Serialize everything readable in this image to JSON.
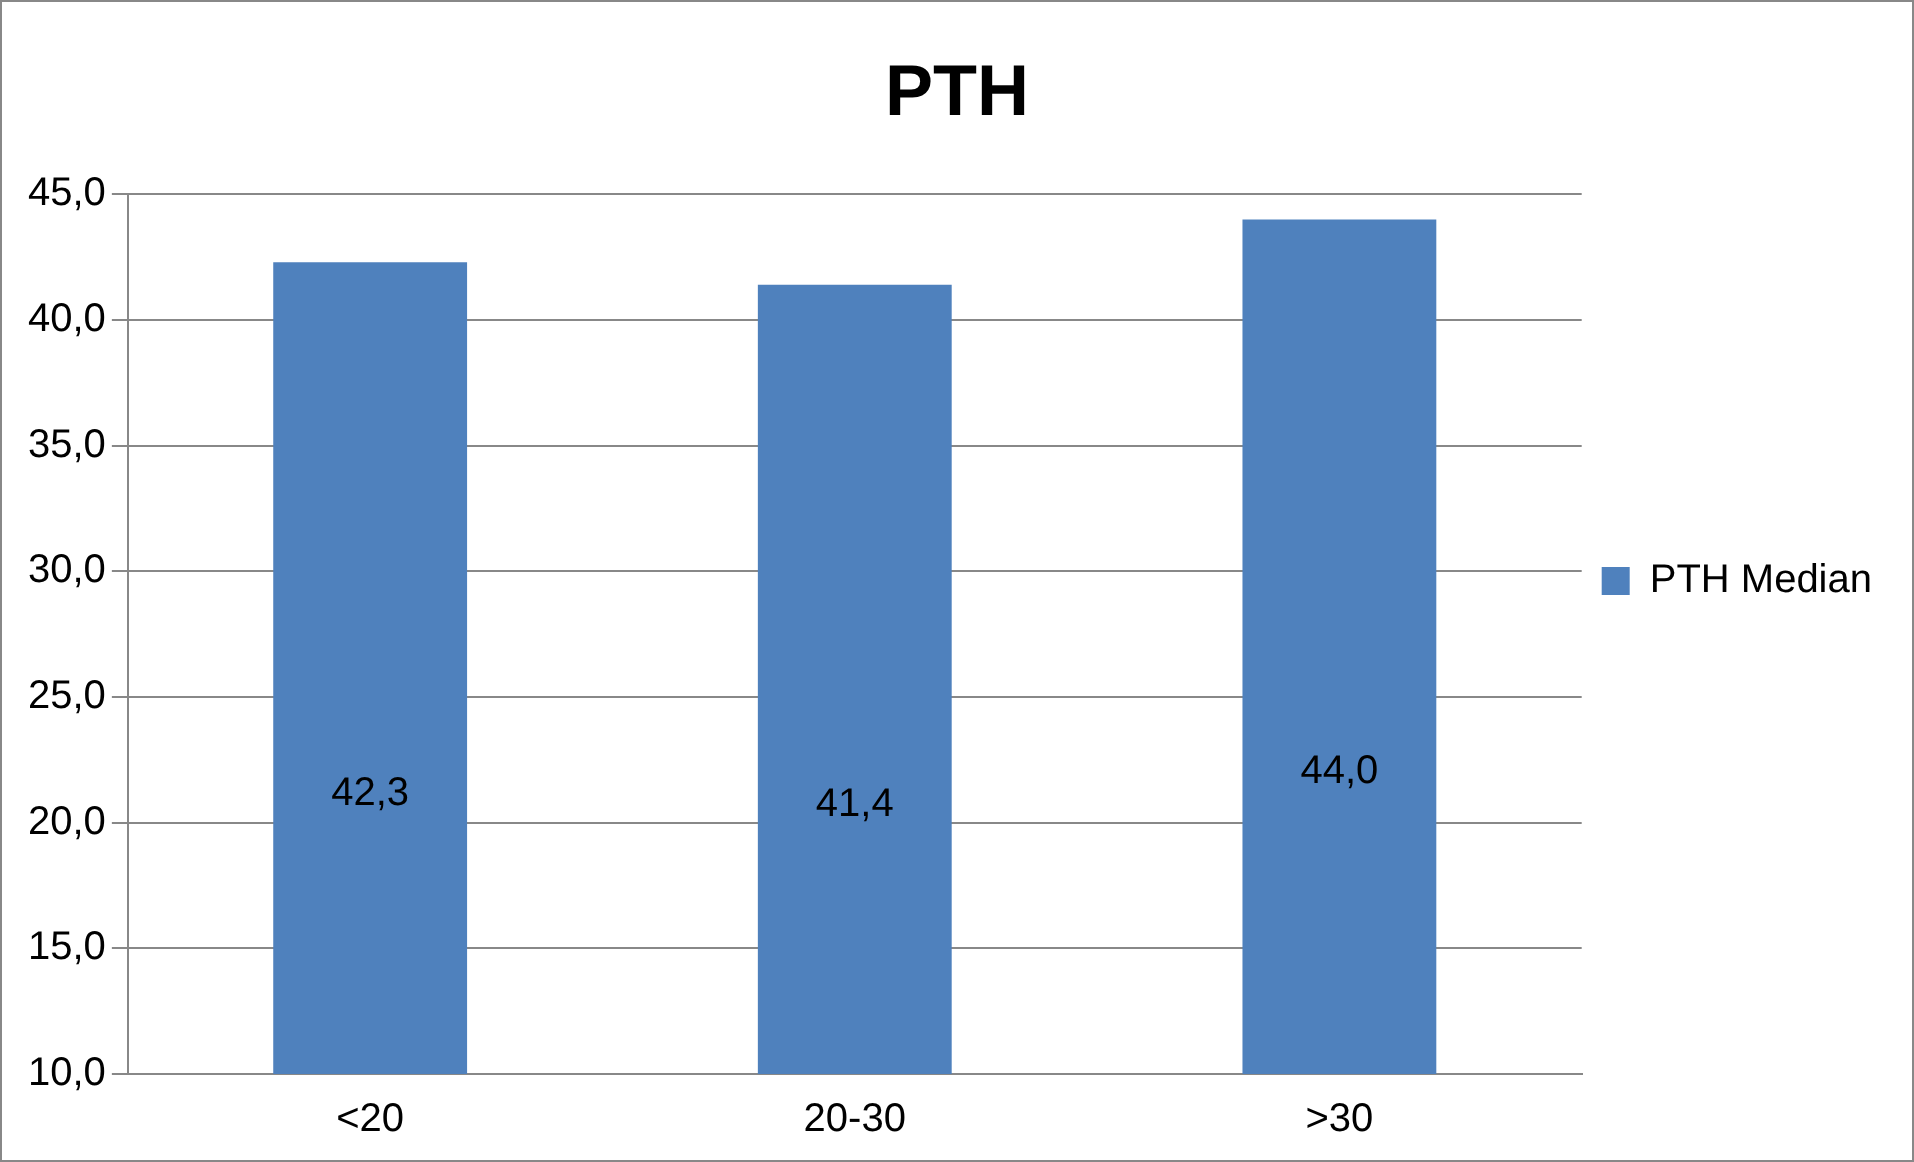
{
  "chart_data": {
    "type": "bar",
    "title": "PTH",
    "categories": [
      "<20",
      "20-30",
      ">30"
    ],
    "series": [
      {
        "name": "PTH Median",
        "color": "#4f81bd",
        "values": [
          42.3,
          41.4,
          44.0
        ],
        "value_labels": [
          "42,3",
          "41,4",
          "44,0"
        ]
      }
    ],
    "ylim": [
      10,
      45
    ],
    "yticks": [
      {
        "value": 10,
        "label": "10,0"
      },
      {
        "value": 15,
        "label": "15,0"
      },
      {
        "value": 20,
        "label": "20,0"
      },
      {
        "value": 25,
        "label": "25,0"
      },
      {
        "value": 30,
        "label": "30,0"
      },
      {
        "value": 35,
        "label": "35,0"
      },
      {
        "value": 40,
        "label": "40,0"
      },
      {
        "value": 45,
        "label": "45,0"
      }
    ],
    "grid": "y",
    "legend": "right"
  }
}
